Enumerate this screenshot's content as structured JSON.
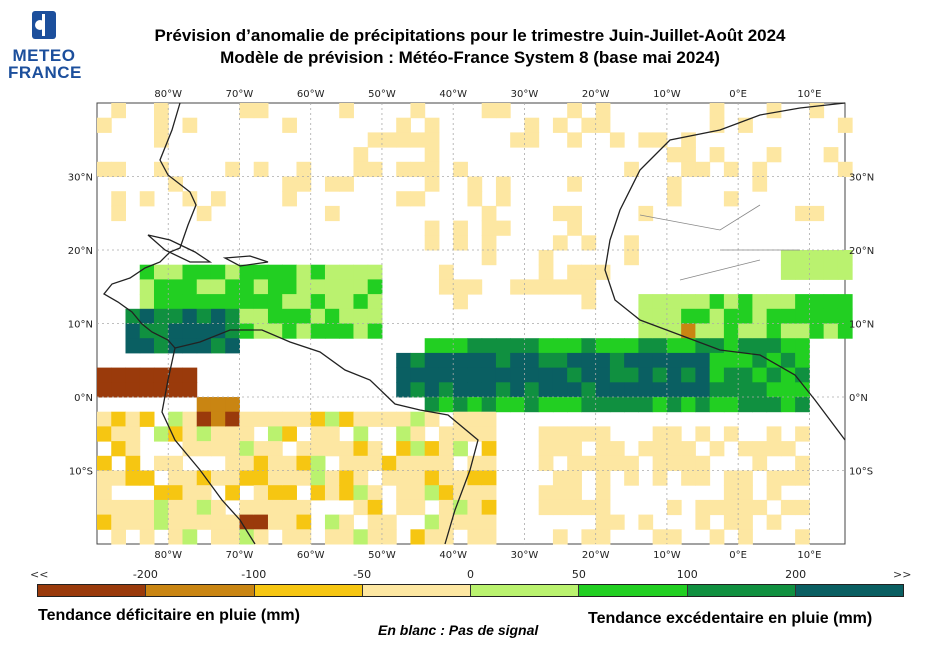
{
  "logo": {
    "line1": "METEO",
    "line2": "FRANCE",
    "color": "#1c4f9c"
  },
  "title": {
    "line1": "Prévision d’anomalie de précipitations pour le trimestre Juin-Juillet-Août 2024",
    "line2": "Modèle de prévision : Météo-France System 8 (base mai 2024)"
  },
  "map": {
    "lon_range": [
      -90,
      15
    ],
    "lat_range": [
      -20,
      40
    ],
    "lon_ticks": [
      "80°W",
      "70°W",
      "60°W",
      "50°W",
      "40°W",
      "30°W",
      "20°W",
      "10°W",
      "0°E",
      "10°E"
    ],
    "lat_ticks": [
      "30°N",
      "20°N",
      "10°N",
      "0°N",
      "10°S"
    ],
    "grid": true
  },
  "legend": {
    "left_arrow": "<<",
    "right_arrow": ">>",
    "ticks": [
      "-200",
      "-100",
      "-50",
      "0",
      "50",
      "100",
      "200"
    ],
    "colors": [
      "#9a3a0b",
      "#c98512",
      "#f6c612",
      "#fde7a2",
      "#baf26f",
      "#22cf22",
      "#109040",
      "#0a5f62"
    ],
    "label_deficit": "Tendance déficitaire en pluie (mm)",
    "label_excess": "Tendance excédentaire en pluie (mm)",
    "note": "En blanc : Pas de signal"
  }
}
